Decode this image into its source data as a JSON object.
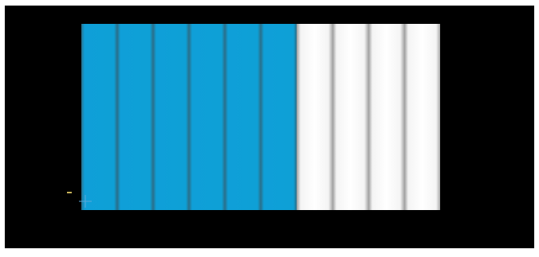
{
  "fraction_model": {
    "total_parts": 10,
    "shaded_parts": 6,
    "shaded_color": "#0ea0d6",
    "unshaded_color": "#ffffff",
    "background_color": "#000000"
  },
  "marks": {
    "cursor_icon": "crosshair-icon"
  }
}
